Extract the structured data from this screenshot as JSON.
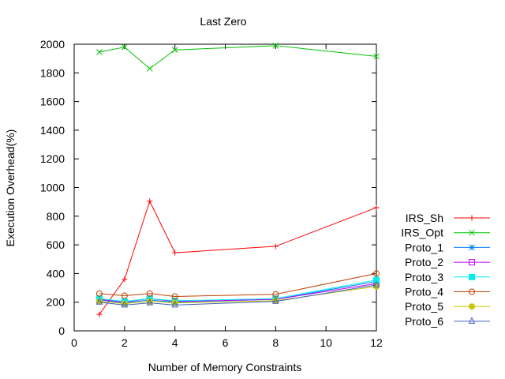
{
  "chart_data": {
    "type": "line",
    "title": "Last Zero",
    "xlabel": "Number of Memory Constraints",
    "ylabel": "Execution Overhead(%)",
    "xlim": [
      0,
      12
    ],
    "ylim": [
      0,
      2000
    ],
    "xticks": [
      0,
      2,
      4,
      6,
      8,
      10,
      12
    ],
    "yticks": [
      0,
      200,
      400,
      600,
      800,
      1000,
      1200,
      1400,
      1600,
      1800,
      2000
    ],
    "grid": false,
    "legend_position": "right",
    "x": [
      1,
      2,
      3,
      4,
      8,
      12
    ],
    "series": [
      {
        "name": "IRS_Sh",
        "color": "#ff0000",
        "marker": "plus",
        "values": [
          115,
          360,
          905,
          545,
          590,
          860
        ]
      },
      {
        "name": "IRS_Opt",
        "color": "#00c000",
        "marker": "cross",
        "values": [
          1945,
          1980,
          1830,
          1960,
          1990,
          1915
        ]
      },
      {
        "name": "Proto_1",
        "color": "#0080ff",
        "marker": "star",
        "values": [
          215,
          195,
          215,
          200,
          220,
          345
        ]
      },
      {
        "name": "Proto_2",
        "color": "#c000ff",
        "marker": "square",
        "values": [
          220,
          200,
          225,
          205,
          220,
          330
        ]
      },
      {
        "name": "Proto_3",
        "color": "#00eeee",
        "marker": "fsquare",
        "values": [
          225,
          205,
          225,
          210,
          225,
          355
        ]
      },
      {
        "name": "Proto_4",
        "color": "#c04000",
        "marker": "circle",
        "values": [
          260,
          245,
          260,
          240,
          255,
          400
        ]
      },
      {
        "name": "Proto_5",
        "color": "#c8c800",
        "marker": "fcircle",
        "values": [
          205,
          190,
          205,
          195,
          210,
          310
        ]
      },
      {
        "name": "Proto_6",
        "color": "#4060c0",
        "marker": "triangle",
        "values": [
          200,
          180,
          195,
          180,
          205,
          320
        ]
      }
    ]
  }
}
